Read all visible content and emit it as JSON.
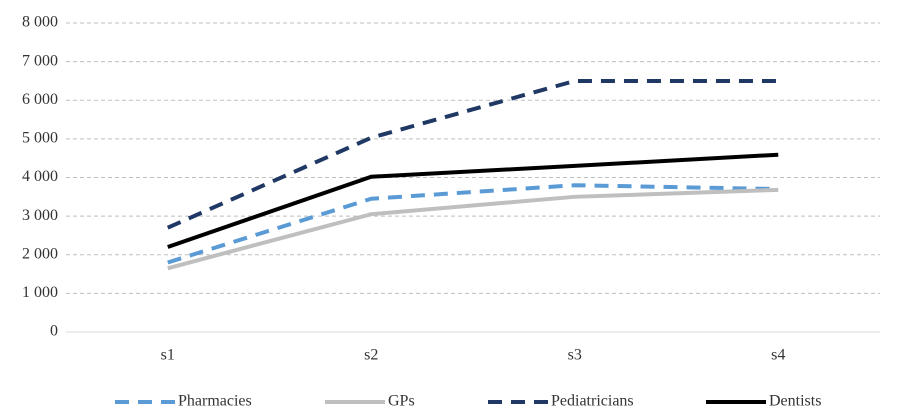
{
  "chart_data": {
    "type": "line",
    "categories": [
      "s1",
      "s2",
      "s3",
      "s4"
    ],
    "series": [
      {
        "name": "Pharmacies",
        "color": "#5b9bd5",
        "style": "dashed",
        "values": [
          1800,
          3450,
          3800,
          3700
        ]
      },
      {
        "name": "GPs",
        "color": "#bfbfbf",
        "style": "solid",
        "values": [
          1650,
          3050,
          3500,
          3680
        ]
      },
      {
        "name": "Pediatricians",
        "color": "#1f3864",
        "style": "dashed",
        "values": [
          2700,
          5030,
          6500,
          6500
        ]
      },
      {
        "name": "Dentists",
        "color": "#000000",
        "style": "solid",
        "values": [
          2200,
          4020,
          4300,
          4590
        ]
      }
    ],
    "ylim": [
      0,
      8000
    ],
    "yticks": [
      {
        "value": 0,
        "label": "0"
      },
      {
        "value": 1000,
        "label": "1 000"
      },
      {
        "value": 2000,
        "label": "2 000"
      },
      {
        "value": 3000,
        "label": "3 000"
      },
      {
        "value": 4000,
        "label": "4 000"
      },
      {
        "value": 5000,
        "label": "5 000"
      },
      {
        "value": 6000,
        "label": "6 000"
      },
      {
        "value": 7000,
        "label": "7 000"
      },
      {
        "value": 8000,
        "label": "8 000"
      }
    ],
    "grid": true,
    "legend": "bottom"
  }
}
